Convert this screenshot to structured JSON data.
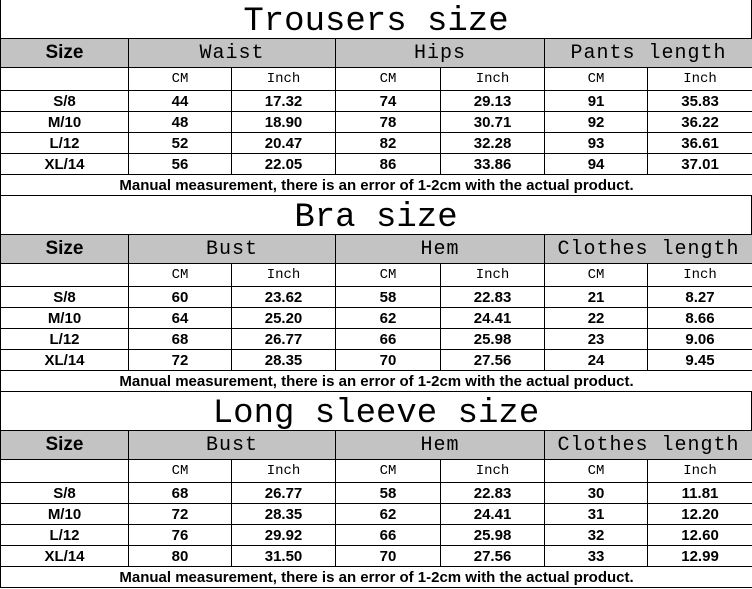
{
  "unit_labels": {
    "cm": "CM",
    "inch": "Inch"
  },
  "size_label": "Size",
  "note": "Manual measurement, there is an error of 1-2cm with the actual product.",
  "header_color": "#c3c3c3",
  "sections": [
    {
      "title": "Trousers size",
      "measures": [
        "Waist",
        "Hips",
        "Pants length"
      ],
      "rows": [
        [
          "S/8",
          "44",
          "17.32",
          "74",
          "29.13",
          "91",
          "35.83"
        ],
        [
          "M/10",
          "48",
          "18.90",
          "78",
          "30.71",
          "92",
          "36.22"
        ],
        [
          "L/12",
          "52",
          "20.47",
          "82",
          "32.28",
          "93",
          "36.61"
        ],
        [
          "XL/14",
          "56",
          "22.05",
          "86",
          "33.86",
          "94",
          "37.01"
        ]
      ]
    },
    {
      "title": "Bra size",
      "measures": [
        "Bust",
        "Hem",
        "Clothes length"
      ],
      "rows": [
        [
          "S/8",
          "60",
          "23.62",
          "58",
          "22.83",
          "21",
          "8.27"
        ],
        [
          "M/10",
          "64",
          "25.20",
          "62",
          "24.41",
          "22",
          "8.66"
        ],
        [
          "L/12",
          "68",
          "26.77",
          "66",
          "25.98",
          "23",
          "9.06"
        ],
        [
          "XL/14",
          "72",
          "28.35",
          "70",
          "27.56",
          "24",
          "9.45"
        ]
      ]
    },
    {
      "title": "Long sleeve size",
      "measures": [
        "Bust",
        "Hem",
        "Clothes length"
      ],
      "rows": [
        [
          "S/8",
          "68",
          "26.77",
          "58",
          "22.83",
          "30",
          "11.81"
        ],
        [
          "M/10",
          "72",
          "28.35",
          "62",
          "24.41",
          "31",
          "12.20"
        ],
        [
          "L/12",
          "76",
          "29.92",
          "66",
          "25.98",
          "32",
          "12.60"
        ],
        [
          "XL/14",
          "80",
          "31.50",
          "70",
          "27.56",
          "33",
          "12.99"
        ]
      ]
    }
  ]
}
